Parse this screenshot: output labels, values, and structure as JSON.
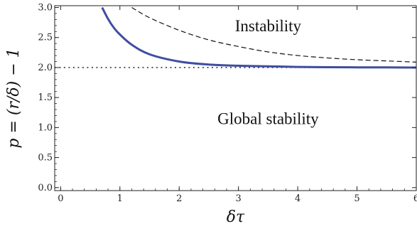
{
  "chart_data": {
    "type": "line",
    "title": "",
    "xlabel": "δτ",
    "ylabel": "p = (r/δ) − 1",
    "xlim": [
      -0.1,
      6.0
    ],
    "ylim": [
      -0.05,
      3.03
    ],
    "x_ticks": [
      0,
      1,
      2,
      3,
      4,
      5,
      6
    ],
    "y_ticks": [
      0.0,
      0.5,
      1.0,
      1.5,
      2.0,
      2.5,
      3.0
    ],
    "x_tick_labels": [
      "0",
      "1",
      "2",
      "3",
      "4",
      "5",
      "6"
    ],
    "y_tick_labels": [
      "0.0",
      "0.5",
      "1.0",
      "1.5",
      "2.0",
      "2.5",
      "3.0"
    ],
    "grid": false,
    "annotations": [
      {
        "text": "Instability",
        "x": 3.5,
        "y": 2.7
      },
      {
        "text": "Global stability",
        "x": 3.5,
        "y": 1.15
      }
    ],
    "series": [
      {
        "style": "solid",
        "color": "#3f4ea0",
        "x": [
          0.7,
          0.8,
          0.9,
          1.0,
          1.2,
          1.5,
          2.0,
          2.5,
          3.0,
          3.5,
          4.0,
          4.5,
          5.0,
          5.5,
          6.0
        ],
        "y": [
          3.0,
          2.81,
          2.66,
          2.55,
          2.38,
          2.22,
          2.1,
          2.05,
          2.03,
          2.02,
          2.01,
          2.005,
          2.003,
          2.002,
          2.0
        ]
      },
      {
        "style": "dashed",
        "color": "#111111",
        "x": [
          1.2,
          1.5,
          2.0,
          2.5,
          3.0,
          3.5,
          4.0,
          4.5,
          5.0,
          5.5,
          6.0
        ],
        "y": [
          3.0,
          2.83,
          2.62,
          2.46,
          2.35,
          2.26,
          2.2,
          2.16,
          2.13,
          2.11,
          2.09
        ]
      },
      {
        "style": "dotted",
        "color": "#111111",
        "x": [
          -0.1,
          6.0
        ],
        "y": [
          2.0,
          2.0
        ]
      }
    ]
  }
}
